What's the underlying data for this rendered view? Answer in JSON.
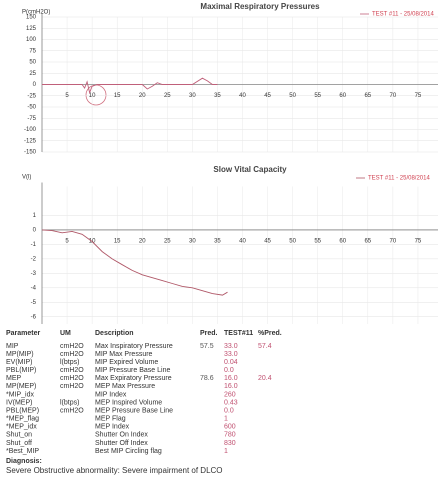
{
  "chart_data": [
    {
      "type": "line",
      "title": "Maximal Respiratory Pressures",
      "ylabel": "P(cmH2O)",
      "legend": "TEST #11 - 25/08/2014",
      "color": "#c0607a",
      "grid": true,
      "x": [
        0,
        5,
        8,
        8.5,
        9,
        9.5,
        10,
        11,
        15,
        20,
        21,
        22,
        23,
        24,
        30,
        32,
        33,
        34,
        35
      ],
      "values": [
        0,
        0,
        0,
        -8,
        6,
        -18,
        -4,
        0,
        0,
        0,
        -10,
        -4,
        4,
        0,
        0,
        14,
        8,
        0,
        0
      ],
      "xlim": [
        0,
        79
      ],
      "ylim": [
        -150,
        150
      ],
      "xticks": [
        5,
        10,
        15,
        20,
        25,
        30,
        35,
        40,
        45,
        50,
        55,
        60,
        65,
        70,
        75
      ],
      "yticks": [
        150,
        125,
        100,
        75,
        50,
        25,
        0,
        -25,
        -50,
        -75,
        -100,
        -125,
        -150
      ]
    },
    {
      "type": "line",
      "title": "Slow Vital Capacity",
      "ylabel": "V(l)",
      "legend": "TEST #11 - 25/08/2014",
      "color": "#b05868",
      "grid": true,
      "x": [
        0,
        2,
        4,
        6,
        8,
        10,
        12,
        14,
        16,
        18,
        20,
        22,
        24,
        26,
        28,
        30,
        32,
        34,
        36,
        37
      ],
      "values": [
        0,
        -0.05,
        -0.2,
        -0.1,
        -0.3,
        -0.8,
        -1.5,
        -2.0,
        -2.4,
        -2.8,
        -3.1,
        -3.3,
        -3.5,
        -3.7,
        -3.9,
        -4.0,
        -4.2,
        -4.4,
        -4.5,
        -4.3
      ],
      "xlim": [
        0,
        79
      ],
      "ylim": [
        -6.5,
        3
      ],
      "xticks": [
        5,
        10,
        15,
        20,
        25,
        30,
        35,
        40,
        45,
        50,
        55,
        60,
        65,
        70,
        75
      ],
      "yticks": [
        1,
        0,
        -1,
        -2,
        -3,
        -4,
        -5,
        -6
      ]
    }
  ],
  "table": {
    "header": [
      "Parameter",
      "UM",
      "Description",
      "Pred.",
      "TEST#11",
      "%Pred."
    ],
    "rows": [
      [
        "MIP",
        "cmH2O",
        "Max Inspiratory Pressure",
        "57.5",
        "33.0",
        "57.4"
      ],
      [
        "MP(MIP)",
        "cmH2O",
        "MIP Max Pressure",
        null,
        "33.0",
        null
      ],
      [
        "EV(MIP)",
        "l(btps)",
        "MIP Expired Volume",
        null,
        "0.04",
        null
      ],
      [
        "PBL(MIP)",
        "cmH2O",
        "MIP Pressure Base Line",
        null,
        "0.0",
        null
      ],
      [
        "MEP",
        "cmH2O",
        "Max Expiratory Pressure",
        "78.6",
        "16.0",
        "20.4"
      ],
      [
        "MP(MEP)",
        "cmH2O",
        "MEP Max Pressure",
        null,
        "16.0",
        null
      ],
      [
        "*MIP_idx",
        null,
        "MIP Index",
        null,
        "260",
        null
      ],
      [
        "IV(MEP)",
        "l(btps)",
        "MEP Inspired Volume",
        null,
        "0.43",
        null
      ],
      [
        "PBL(MEP)",
        "cmH2O",
        "MEP Pressure Base Line",
        null,
        "0.0",
        null
      ],
      [
        "*MEP_flag",
        null,
        "MEP Flag",
        null,
        "1",
        null
      ],
      [
        "*MEP_idx",
        null,
        "MEP Index",
        null,
        "600",
        null
      ],
      [
        "Shut_on",
        null,
        "Shutter On Index",
        null,
        "780",
        null
      ],
      [
        "Shut_off",
        null,
        "Shutter Off Index",
        null,
        "830",
        null
      ],
      [
        "*Best_MIP",
        null,
        "Best MIP Circling flag",
        null,
        "1",
        null
      ]
    ]
  },
  "diagnosis": {
    "title": "Diagnosis:",
    "text": "Severe Obstructive abnormality: Severe impairment of DLCO"
  }
}
